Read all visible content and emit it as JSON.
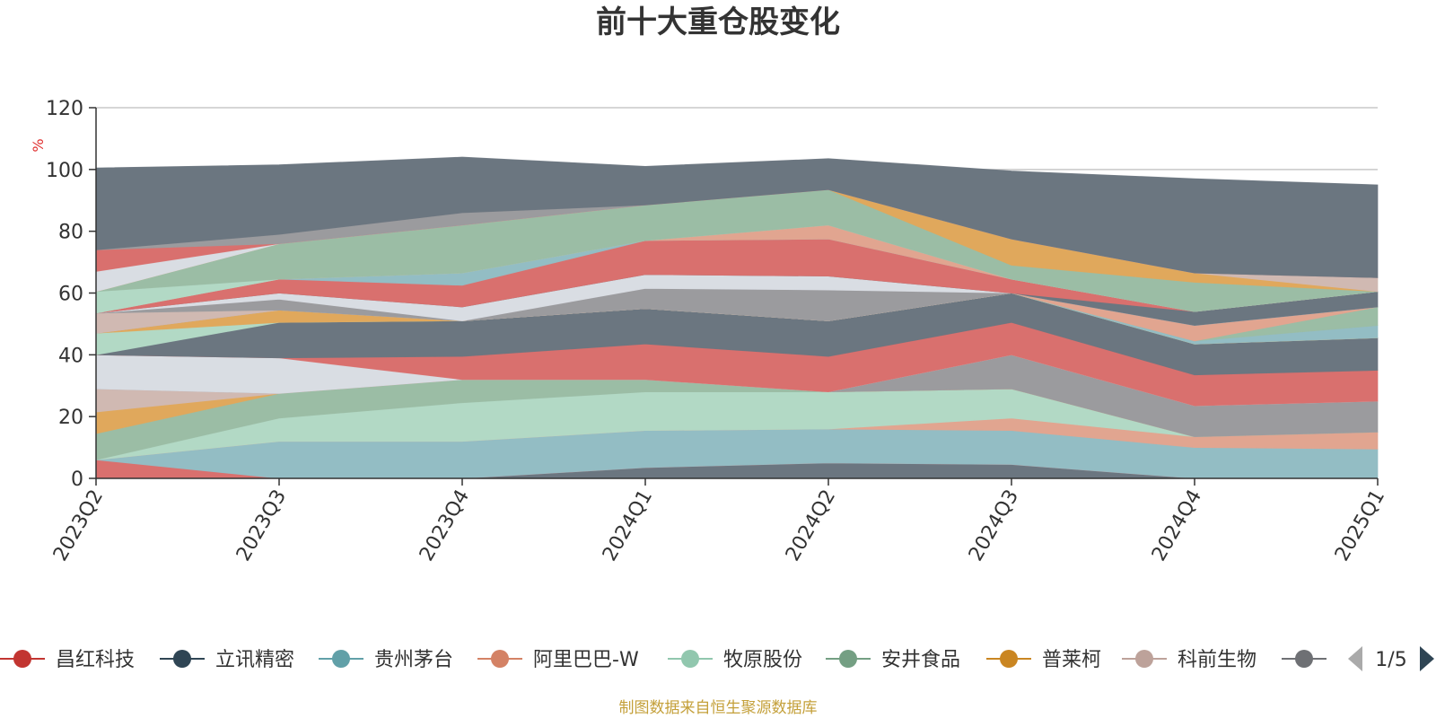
{
  "chart_data": {
    "type": "area",
    "stacked": true,
    "title": "前十大重仓股变化",
    "ylabel": "%",
    "ylim": [
      0,
      120
    ],
    "yticks": [
      0,
      20,
      40,
      60,
      80,
      100,
      120
    ],
    "grid": true,
    "x": [
      "2023Q2",
      "2023Q3",
      "2023Q4",
      "2024Q1",
      "2024Q2",
      "2024Q3",
      "2024Q4",
      "2025Q1"
    ],
    "series": [
      {
        "name": "",
        "color": "#6b7680",
        "values": [
          0,
          0,
          0,
          3.5,
          5,
          4.5,
          0,
          0
        ]
      },
      {
        "name": "昌红科技",
        "color": "#d9706e",
        "values": [
          6,
          0,
          0,
          0,
          0,
          0,
          0,
          0
        ]
      },
      {
        "name": "贵州茅台",
        "color": "#93bdc4",
        "values": [
          0,
          12,
          12,
          12,
          11,
          11,
          10,
          9.5
        ]
      },
      {
        "name": "阿里巴巴-W",
        "color": "#e1a590",
        "values": [
          0,
          0,
          0,
          0,
          0,
          4,
          3.5,
          5.5
        ]
      },
      {
        "name": "牧原股份",
        "color": "#b2d9c5",
        "values": [
          0,
          7.5,
          12.5,
          12.5,
          12,
          9.5,
          0,
          0
        ]
      },
      {
        "name": "安井食品",
        "color": "#9bbda5",
        "values": [
          8.5,
          8,
          7.5,
          4,
          0,
          0,
          0,
          0
        ]
      },
      {
        "name": "普莱柯",
        "color": "#e0a85c",
        "values": [
          7,
          0,
          0,
          0,
          0,
          0,
          0,
          0
        ]
      },
      {
        "name": "科前生物",
        "color": "#d0b9b2",
        "values": [
          7.5,
          0,
          0,
          0,
          0,
          0,
          0,
          0
        ]
      },
      {
        "name": "",
        "color": "#9b9b9e",
        "values": [
          0,
          0,
          0,
          0,
          0,
          11,
          10,
          10
        ]
      },
      {
        "name": "",
        "color": "#d9dde3",
        "values": [
          11,
          11.5,
          0,
          0,
          0,
          0,
          0,
          0
        ]
      },
      {
        "name": "",
        "color": "#d9706e",
        "values": [
          0,
          0,
          7.5,
          11.5,
          11.5,
          10.5,
          10,
          10
        ]
      },
      {
        "name": "立讯精密",
        "color": "#6b7680",
        "values": [
          0,
          11.5,
          11.5,
          11.5,
          11.5,
          9.5,
          10,
          10.5
        ]
      },
      {
        "name": "",
        "color": "#b2d9c5",
        "values": [
          7,
          0,
          0,
          0,
          0,
          0,
          0,
          0
        ]
      },
      {
        "name": "",
        "color": "#e0a85c",
        "values": [
          0,
          4,
          0,
          0,
          0,
          0,
          0,
          0
        ]
      },
      {
        "name": "",
        "color": "#93bdc4",
        "values": [
          0,
          0,
          0,
          0,
          0,
          0,
          1,
          4
        ]
      },
      {
        "name": "",
        "color": "#9bbda5",
        "values": [
          0,
          0,
          0,
          0,
          0,
          0,
          0,
          6
        ]
      },
      {
        "name": "",
        "color": "#e1a590",
        "values": [
          0,
          0,
          0,
          0,
          0,
          0,
          5,
          0
        ]
      },
      {
        "name": "",
        "color": "#d0b9b2",
        "values": [
          6.5,
          0,
          0,
          0,
          0,
          0,
          0,
          0
        ]
      },
      {
        "name": "",
        "color": "#9b9b9e",
        "values": [
          0,
          3.5,
          0,
          6.5,
          10,
          0,
          0,
          0
        ]
      },
      {
        "name": "",
        "color": "#d9dde3",
        "values": [
          0,
          2,
          4.5,
          4.5,
          4.5,
          0,
          0,
          0
        ]
      },
      {
        "name": "",
        "color": "#6b7680",
        "values": [
          0,
          0,
          0,
          0,
          0,
          0,
          4.5,
          5
        ]
      },
      {
        "name": "",
        "color": "#d9706e",
        "values": [
          0,
          4.5,
          7,
          11,
          12,
          4.5,
          0,
          0
        ]
      },
      {
        "name": "",
        "color": "#93bdc4",
        "values": [
          0,
          0,
          4,
          0,
          0,
          0,
          0,
          0
        ]
      },
      {
        "name": "",
        "color": "#e1a590",
        "values": [
          0,
          0,
          0,
          0,
          4.5,
          0,
          0,
          0
        ]
      },
      {
        "name": "",
        "color": "#b2d9c5",
        "values": [
          7,
          0,
          0,
          0,
          0,
          0,
          0,
          0
        ]
      },
      {
        "name": "",
        "color": "#9bbda5",
        "values": [
          0,
          11.5,
          15.5,
          11.5,
          11.5,
          4.5,
          9.5,
          0
        ]
      },
      {
        "name": "",
        "color": "#e0a85c",
        "values": [
          0,
          0,
          0,
          0,
          0,
          8.5,
          3,
          0
        ]
      },
      {
        "name": "",
        "color": "#d0b9b2",
        "values": [
          0,
          0,
          0,
          0,
          0,
          0,
          0,
          4.5
        ]
      },
      {
        "name": "",
        "color": "#d9dde3",
        "values": [
          6.5,
          0,
          0,
          0,
          0,
          0,
          0,
          0
        ]
      },
      {
        "name": "",
        "color": "#d9706e",
        "values": [
          7,
          0,
          0,
          0,
          0,
          0,
          0,
          0
        ]
      },
      {
        "name": "",
        "color": "#9b9b9e",
        "values": [
          0,
          3,
          4,
          0,
          0,
          0,
          0,
          0
        ]
      },
      {
        "name": "",
        "color": "#6b7680",
        "values": [
          26.5,
          22.5,
          18,
          12.5,
          10,
          22,
          30.5,
          30
        ]
      }
    ],
    "legend": {
      "position": "bottom",
      "items": [
        {
          "name": "昌红科技",
          "color": "#c23531"
        },
        {
          "name": "立讯精密",
          "color": "#2f4554"
        },
        {
          "name": "贵州茅台",
          "color": "#61a0a8"
        },
        {
          "name": "阿里巴巴-W",
          "color": "#d48265"
        },
        {
          "name": "牧原股份",
          "color": "#91c7ae"
        },
        {
          "name": "安井食品",
          "color": "#749f83"
        },
        {
          "name": "普莱柯",
          "color": "#ca8622"
        },
        {
          "name": "科前生物",
          "color": "#bda29a"
        },
        {
          "name": "",
          "color": "#6e7074"
        }
      ],
      "page": "1/5"
    },
    "source": "制图数据来自恒生聚源数据库"
  }
}
